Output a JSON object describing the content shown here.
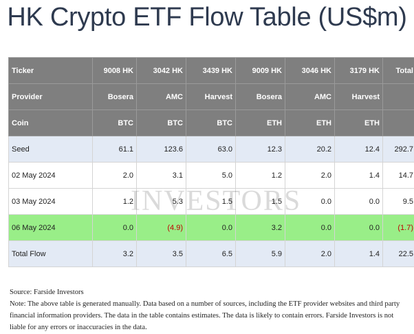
{
  "title": "HK Crypto ETF Flow Table (US$m)",
  "table": {
    "header_rows": [
      [
        "Ticker",
        "9008 HK",
        "3042 HK",
        "3439 HK",
        "9009 HK",
        "3046 HK",
        "3179 HK",
        "Total"
      ],
      [
        "Provider",
        "Bosera",
        "AMC",
        "Harvest",
        "Bosera",
        "AMC",
        "Harvest",
        ""
      ],
      [
        "Coin",
        "BTC",
        "BTC",
        "BTC",
        "ETH",
        "ETH",
        "ETH",
        ""
      ]
    ],
    "rows": [
      {
        "style": "seed",
        "cells": [
          "Seed",
          "61.1",
          "123.6",
          "63.0",
          "12.3",
          "20.2",
          "12.4",
          "292.7"
        ],
        "negative": []
      },
      {
        "style": "plain",
        "cells": [
          "02 May 2024",
          "2.0",
          "3.1",
          "5.0",
          "1.2",
          "2.0",
          "1.4",
          "14.7"
        ],
        "negative": []
      },
      {
        "style": "plain",
        "cells": [
          "03 May 2024",
          "1.2",
          "5.3",
          "1.5",
          "1.5",
          "0.0",
          "0.0",
          "9.5"
        ],
        "negative": []
      },
      {
        "style": "green",
        "cells": [
          "06 May 2024",
          "0.0",
          "(4.9)",
          "0.0",
          "3.2",
          "0.0",
          "0.0",
          "(1.7)"
        ],
        "negative": [
          2,
          7
        ]
      },
      {
        "style": "total",
        "cells": [
          "Total Flow",
          "3.2",
          "3.5",
          "6.5",
          "5.9",
          "2.0",
          "1.4",
          "22.5"
        ],
        "negative": []
      }
    ]
  },
  "watermark": "INVESTORS",
  "notes": {
    "source": "Source: Farside Investors",
    "note": "Note: The above table is generated manually. Data based on a number of sources, including the ETF provider websites and third party financial information providers. The data in the table contains estimates. The data is likely to contain errors. Farside Investors is not liable for any errors or inaccuracies in the data."
  },
  "colors": {
    "header_bg": "#7f7f7f",
    "seed_bg": "#e3eaf5",
    "highlight_bg": "#99ee88",
    "negative_text": "#c00000",
    "title_text": "#2e3a4f"
  }
}
